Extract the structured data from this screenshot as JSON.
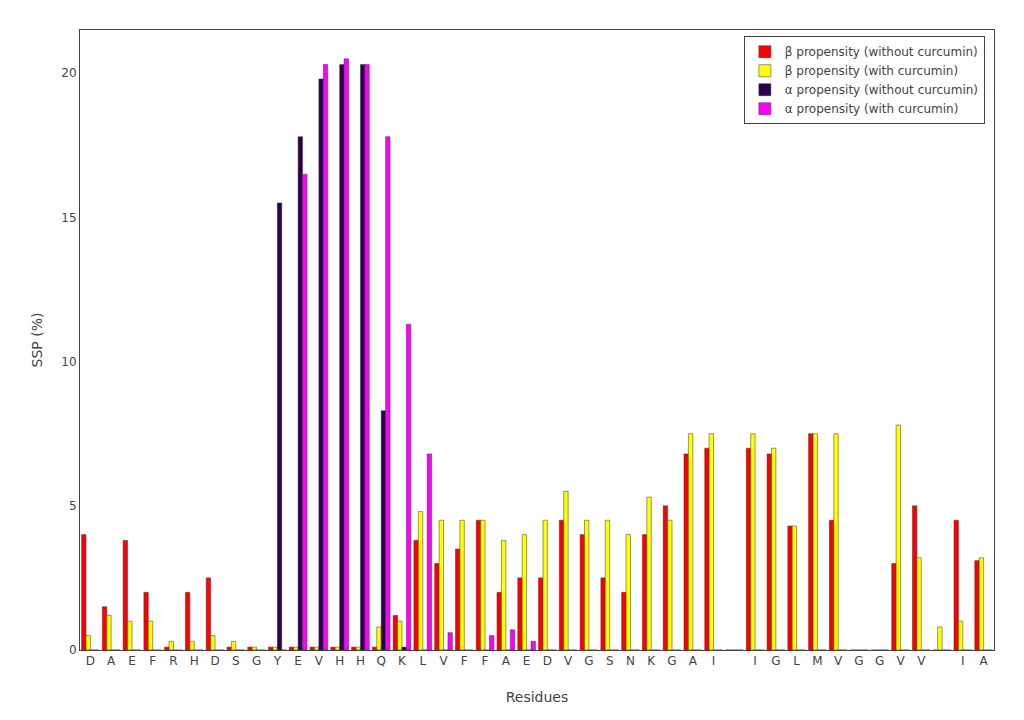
{
  "chart_data": {
    "type": "bar",
    "xlabel": "Residues",
    "ylabel": "SSP (%)",
    "categories": [
      "D",
      "A",
      "E",
      "F",
      "R",
      "H",
      "D",
      "S",
      "G",
      "Y",
      "E",
      "V",
      "H",
      "H",
      "Q",
      "K",
      "L",
      "V",
      "F",
      "F",
      "A",
      "E",
      "D",
      "V",
      "G",
      "S",
      "N",
      "K",
      "G",
      "A",
      "I",
      null,
      "I",
      "G",
      "L",
      "M",
      "V",
      "G",
      "G",
      "V",
      "V",
      null,
      "I",
      "A"
    ],
    "series": [
      {
        "name": "β propensity (without curcumin)",
        "color": "red",
        "values": [
          4.0,
          1.5,
          3.8,
          2.0,
          0.1,
          2.0,
          2.5,
          0.1,
          0.1,
          0.1,
          0.1,
          0.1,
          0.1,
          0.1,
          0.1,
          1.2,
          3.8,
          3.0,
          3.5,
          4.5,
          2.0,
          2.5,
          2.5,
          4.5,
          4.0,
          2.5,
          2.0,
          4.0,
          5.0,
          6.8,
          7.0,
          0.0,
          7.0,
          6.8,
          4.3,
          7.5,
          4.5,
          0.0,
          0.0,
          3.0,
          5.0,
          0.0,
          4.5,
          3.1
        ]
      },
      {
        "name": "β propensity (with curcumin)",
        "color": "yellow",
        "values": [
          0.5,
          1.2,
          1.0,
          1.0,
          0.3,
          0.3,
          0.5,
          0.3,
          0.1,
          0.1,
          0.1,
          0.1,
          0.1,
          0.1,
          0.8,
          1.0,
          4.8,
          4.5,
          4.5,
          4.5,
          3.8,
          4.0,
          4.5,
          5.5,
          4.5,
          4.5,
          4.0,
          5.3,
          4.5,
          7.5,
          7.5,
          0.0,
          7.5,
          7.0,
          4.3,
          7.5,
          7.5,
          0.0,
          0.0,
          7.8,
          3.2,
          0.8,
          1.0,
          3.2
        ]
      },
      {
        "name": "α propensity (without curcumin)",
        "color": "#2a0050",
        "values": [
          0.0,
          0.0,
          0.0,
          0.0,
          0.0,
          0.0,
          0.0,
          0.0,
          0.0,
          15.5,
          17.8,
          19.8,
          20.3,
          20.3,
          8.3,
          0.1,
          0.0,
          0.0,
          0.0,
          0.0,
          0.0,
          0.0,
          0.0,
          0.0,
          0.0,
          0.0,
          0.0,
          0.0,
          0.0,
          0.0,
          0.0,
          0.0,
          0.0,
          0.0,
          0.0,
          0.0,
          0.0,
          0.0,
          0.0,
          0.0,
          0.0,
          0.0,
          0.0,
          0.0
        ]
      },
      {
        "name": "α propensity (with curcumin)",
        "color": "magenta",
        "values": [
          0.0,
          0.0,
          0.0,
          0.0,
          0.0,
          0.0,
          0.0,
          0.0,
          0.0,
          0.0,
          16.5,
          20.3,
          20.5,
          20.3,
          17.8,
          11.3,
          6.8,
          0.6,
          0.0,
          0.5,
          0.7,
          0.3,
          0.0,
          0.0,
          0.0,
          0.0,
          0.0,
          0.0,
          0.0,
          0.0,
          0.0,
          0.0,
          0.0,
          0.0,
          0.0,
          0.0,
          0.0,
          0.0,
          0.0,
          0.0,
          0.0,
          0.0,
          0.0,
          0.0
        ]
      }
    ],
    "ylim": [
      0,
      21.5
    ],
    "yticks": [
      0,
      5,
      10,
      15,
      20
    ],
    "grid": false,
    "legend": "upper right"
  }
}
